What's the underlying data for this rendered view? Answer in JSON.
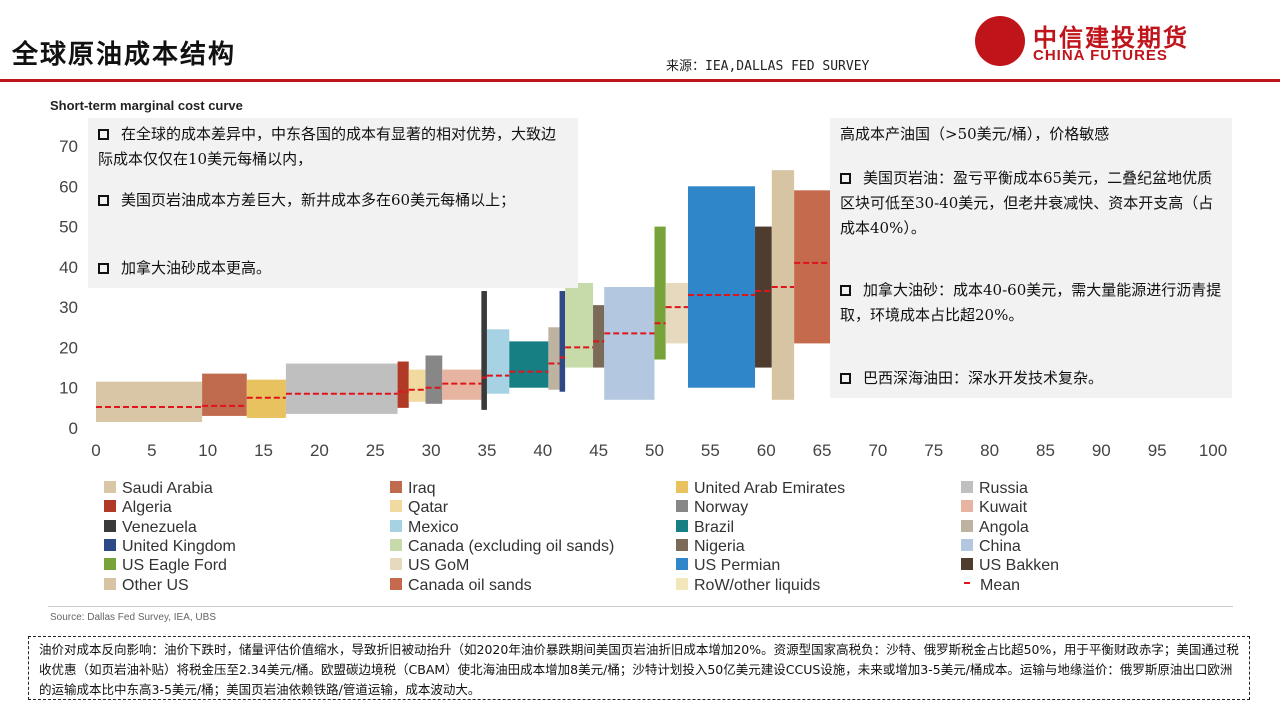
{
  "slide": {
    "title": "全球原油成本结构",
    "source": "来源：IEA,DALLAS FED SURVEY",
    "logo": {
      "cn": "中信建投期货",
      "en": "CHINA FUTURES"
    },
    "chart_heading": "Short-term marginal cost curve",
    "chart_source": "Source: Dallas Fed Survey, IEA, UBS",
    "note": "油价对成本反向影响：油价下跌时，储量评估价值缩水，导致折旧被动抬升（如2020年油价暴跌期间美国页岩油折旧成本增加20%。资源型国家高税负：沙特、俄罗斯税金占比超50%，用于平衡财政赤字；美国通过税收优惠（如页岩油补贴）将税金压至2.34美元/桶。欧盟碳边境税（CBAM）使北海油田成本增加8美元/桶；沙特计划投入50亿美元建设CCUS设施，未来或增加3-5美元/桶成本。运输与地缘溢价：俄罗斯原油出口欧洲的运输成本比中东高3-5美元/桶；美国页岩油依赖铁路/管道运输，成本波动大。"
  },
  "callout_left": [
    "在全球的成本差异中，中东各国的成本有显著的相对优势，大致边际成本仅仅在10美元每桶以内，",
    "美国页岩油成本方差巨大，新井成本多在60美元每桶以上；",
    "加拿大油砂成本更高。"
  ],
  "callout_right": {
    "heading": "高成本产油国（>50美元/桶），价格敏感",
    "items": [
      "美国页岩油：盈亏平衡成本65美元，二叠纪盆地优质区块可低至30-40美元，但老井衰减快、资本开支高（占成本40%）。",
      "加拿大油砂：成本40-60美元，需大量能源进行沥青提取，环境成本占比超20%。",
      "巴西深海油田：深水开发技术复杂。"
    ]
  },
  "chart_data": {
    "type": "bar",
    "subtype": "variable-width range bars (marginal cost curve)",
    "title": "Short-term marginal cost curve",
    "x_ticks": [
      0,
      5,
      10,
      15,
      20,
      25,
      30,
      35,
      40,
      45,
      50,
      55,
      60,
      65,
      70,
      75,
      80,
      85,
      90,
      95,
      100
    ],
    "y_ticks": [
      0,
      10,
      20,
      30,
      40,
      50,
      60,
      70
    ],
    "xlim": [
      0,
      100
    ],
    "ylim": [
      0,
      70
    ],
    "grid": false,
    "legend_position": "bottom",
    "colors": {
      "Saudi Arabia": "#d9c6a6",
      "Iraq": "#c06a4e",
      "United Arab Emirates": "#e8c25e",
      "Russia": "#bfbfbf",
      "Algeria": "#b03a26",
      "Qatar": "#f1d9a0",
      "Norway": "#878787",
      "Kuwait": "#e8b4a2",
      "Venezuela": "#3a3a3a",
      "Mexico": "#a6d2e4",
      "Brazil": "#167f83",
      "Angola": "#bdb3a0",
      "United Kingdom": "#2e4a86",
      "Canada (excluding oil sands)": "#c7dbaa",
      "Nigeria": "#7b6a57",
      "China": "#b3c8e0",
      "US Eagle Ford": "#77a33a",
      "US GoM": "#e6d9be",
      "US Permian": "#2f86c9",
      "US Bakken": "#4e3d2f",
      "Other US": "#d6c4a3",
      "Canada oil sands": "#c66a4e",
      "RoW/other liquids": "#f3e6bd",
      "Mean": "#e0141b"
    },
    "series": [
      {
        "name": "Saudi Arabia",
        "x0": 0,
        "x1": 9.5,
        "low": 1.5,
        "high": 11.5,
        "mean": 5.2
      },
      {
        "name": "Iraq",
        "x0": 9.5,
        "x1": 13.5,
        "low": 3,
        "high": 13.5,
        "mean": 5.5
      },
      {
        "name": "United Arab Emirates",
        "x0": 13.5,
        "x1": 17,
        "low": 2.5,
        "high": 12,
        "mean": 7.5
      },
      {
        "name": "Russia",
        "x0": 17,
        "x1": 27,
        "low": 3.5,
        "high": 16,
        "mean": 8.5
      },
      {
        "name": "Algeria",
        "x0": 27,
        "x1": 28,
        "low": 5,
        "high": 16.5,
        "mean": 9
      },
      {
        "name": "Qatar",
        "x0": 28,
        "x1": 29.5,
        "low": 6.5,
        "high": 14.5,
        "mean": 9.5
      },
      {
        "name": "Norway",
        "x0": 29.5,
        "x1": 31,
        "low": 6,
        "high": 18,
        "mean": 10
      },
      {
        "name": "Kuwait",
        "x0": 31,
        "x1": 34.5,
        "low": 7,
        "high": 14.5,
        "mean": 11
      },
      {
        "name": "Venezuela",
        "x0": 34.5,
        "x1": 35,
        "low": 4.5,
        "high": 34,
        "mean": 12.5
      },
      {
        "name": "Mexico",
        "x0": 35,
        "x1": 37,
        "low": 8.5,
        "high": 24.5,
        "mean": 13
      },
      {
        "name": "Brazil",
        "x0": 37,
        "x1": 40.5,
        "low": 10,
        "high": 21.5,
        "mean": 14
      },
      {
        "name": "Angola",
        "x0": 40.5,
        "x1": 41.5,
        "low": 9.5,
        "high": 25,
        "mean": 16
      },
      {
        "name": "United Kingdom",
        "x0": 41.5,
        "x1": 42,
        "low": 9,
        "high": 34,
        "mean": 17.5
      },
      {
        "name": "Canada (excluding oil sands)",
        "x0": 42,
        "x1": 44.5,
        "low": 15,
        "high": 36,
        "mean": 20
      },
      {
        "name": "Nigeria",
        "x0": 44.5,
        "x1": 45.5,
        "low": 15,
        "high": 30.5,
        "mean": 21.5
      },
      {
        "name": "China",
        "x0": 45.5,
        "x1": 50,
        "low": 7,
        "high": 35,
        "mean": 23.5
      },
      {
        "name": "US Eagle Ford",
        "x0": 50,
        "x1": 51,
        "low": 17,
        "high": 50,
        "mean": 26
      },
      {
        "name": "US GoM",
        "x0": 51,
        "x1": 53,
        "low": 21,
        "high": 36,
        "mean": 30
      },
      {
        "name": "US Permian",
        "x0": 53,
        "x1": 59,
        "low": 10,
        "high": 60,
        "mean": 33
      },
      {
        "name": "US Bakken",
        "x0": 59,
        "x1": 60.5,
        "low": 15,
        "high": 50,
        "mean": 34
      },
      {
        "name": "Other US",
        "x0": 60.5,
        "x1": 62.5,
        "low": 7,
        "high": 64,
        "mean": 35
      },
      {
        "name": "Canada oil sands",
        "x0": 62.5,
        "x1": 66,
        "low": 21,
        "high": 59,
        "mean": 41
      }
    ]
  }
}
